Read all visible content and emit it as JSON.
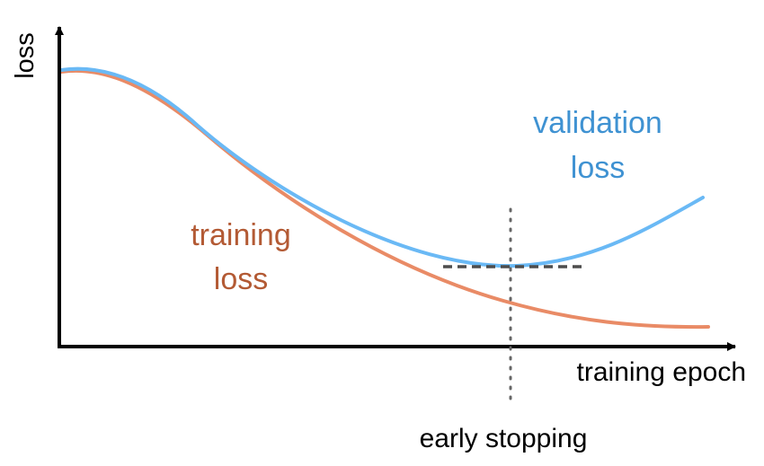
{
  "chart_data": {
    "type": "line",
    "title": "",
    "xlabel": "training epoch",
    "ylabel": "loss",
    "grid": false,
    "legend": "none",
    "series": [
      {
        "name": "validation loss",
        "label_lines": [
          "validation",
          "loss"
        ],
        "color": "#6ab9f5",
        "label_color": "#3f92d2"
      },
      {
        "name": "training loss",
        "label_lines": [
          "training",
          "loss"
        ],
        "color": "#e98b66",
        "label_color": "#b35a34"
      }
    ],
    "annotations": {
      "early_stopping": "early stopping"
    }
  }
}
